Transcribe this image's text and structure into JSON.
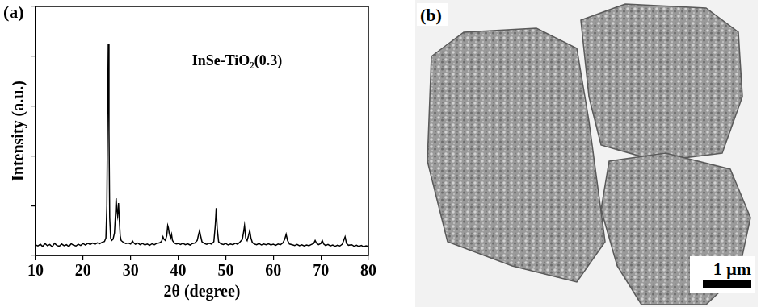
{
  "chart_data": {
    "type": "line",
    "panel_label": "(a)",
    "x_label": "2θ (degree)",
    "y_label": "Intensity (a.u.)",
    "annotations": [
      "InSe-TiO₂(0.3)"
    ],
    "x": [
      10,
      10.5,
      11,
      11.5,
      12,
      12.5,
      13,
      13.5,
      14,
      14.5,
      15,
      15.5,
      16,
      16.5,
      17,
      17.5,
      18,
      18.5,
      19,
      19.5,
      20,
      20.5,
      21,
      21.5,
      22,
      22.5,
      23,
      23.5,
      24,
      24.5,
      24.8,
      25.0,
      25.15,
      25.3,
      25.45,
      25.6,
      25.8,
      26.0,
      26.3,
      26.6,
      26.8,
      26.95,
      27.1,
      27.25,
      27.45,
      27.6,
      27.8,
      28.0,
      28.5,
      29,
      29.5,
      30,
      30.4,
      30.6,
      31,
      31.5,
      32,
      32.5,
      33,
      33.5,
      34,
      34.5,
      35,
      35.5,
      36,
      36.5,
      36.8,
      37,
      37.3,
      37.6,
      37.8,
      37.95,
      38.1,
      38.4,
      38.6,
      38.8,
      39.2,
      39.6,
      40,
      40.5,
      41,
      41.5,
      42,
      42.5,
      43,
      43.5,
      44,
      44.3,
      44.5,
      44.7,
      45,
      45.5,
      46,
      46.5,
      47,
      47.5,
      47.8,
      48,
      48.2,
      48.5,
      49,
      49.5,
      50,
      50.5,
      51,
      51.5,
      52,
      52.5,
      53,
      53.5,
      53.8,
      53.95,
      54.2,
      54.5,
      54.8,
      55.05,
      55.3,
      55.6,
      56,
      56.5,
      57,
      57.5,
      58,
      58.5,
      59,
      59.5,
      60,
      60.5,
      61,
      61.5,
      62,
      62.4,
      62.7,
      63,
      63.4,
      64,
      64.5,
      65,
      65.5,
      66,
      66.5,
      67,
      67.5,
      68,
      68.5,
      68.8,
      69.1,
      69.5,
      70,
      70.3,
      70.6,
      71,
      71.5,
      72,
      72.5,
      73,
      73.5,
      74,
      74.5,
      74.9,
      75.1,
      75.4,
      75.8,
      76.5,
      77,
      77.5,
      78,
      78.5,
      79,
      79.5,
      80
    ],
    "series": [
      {
        "name": "InSe-TiO₂(0.3)",
        "color": "#000000",
        "values": [
          4.2,
          3.8,
          4.5,
          3.6,
          4.8,
          3.9,
          4.4,
          3.5,
          4.9,
          4.0,
          3.7,
          4.6,
          3.9,
          4.3,
          3.6,
          4.7,
          4.1,
          3.8,
          4.5,
          4.0,
          4.8,
          4.2,
          4.9,
          4.4,
          5.0,
          4.5,
          5.1,
          4.7,
          5.3,
          5.6,
          7,
          20,
          55,
          85,
          50,
          15,
          7,
          6,
          6.5,
          9,
          16,
          23,
          18,
          16,
          21,
          15,
          8,
          6,
          5.2,
          4.8,
          5.0,
          4.6,
          5.8,
          5.2,
          4.5,
          5.0,
          4.3,
          4.8,
          4.2,
          4.6,
          4.1,
          4.7,
          4.3,
          4.9,
          5.0,
          5.6,
          7.5,
          6.5,
          6,
          8,
          12,
          11,
          9,
          7,
          8.5,
          6,
          5,
          4.6,
          4.8,
          4.4,
          4.9,
          4.3,
          4.7,
          4.2,
          4.8,
          5.0,
          6,
          8.5,
          10,
          8,
          5.5,
          4.8,
          4.5,
          4.9,
          4.6,
          5.5,
          12,
          19,
          11,
          5.5,
          4.7,
          4.4,
          4.8,
          4.2,
          4.6,
          4.3,
          4.9,
          4.5,
          5.4,
          6.5,
          10,
          12,
          7,
          6,
          8,
          10,
          7,
          5.2,
          4.6,
          4.3,
          4.8,
          4.2,
          4.6,
          4.3,
          4.7,
          4.2,
          4.5,
          4.1,
          4.6,
          4.3,
          5.0,
          6.5,
          8.5,
          6,
          4.6,
          4.3,
          4.0,
          4.4,
          3.9,
          4.3,
          3.8,
          4.2,
          3.9,
          4.4,
          4.8,
          6,
          4.9,
          4.3,
          4.8,
          6,
          4.6,
          4.0,
          4.4,
          3.8,
          4.2,
          3.7,
          4.1,
          3.8,
          4.5,
          6.5,
          7.5,
          4.8,
          4.1,
          4.3,
          3.7,
          4.1,
          3.6,
          4.0,
          3.5,
          3.9,
          3.6
        ]
      }
    ],
    "xlim": [
      10,
      80
    ],
    "xticks": [
      10,
      20,
      30,
      40,
      50,
      60,
      70,
      80
    ],
    "ylim": [
      0,
      100
    ],
    "yticks": [
      0,
      20,
      40,
      60,
      80,
      100
    ],
    "grid": false,
    "tick_labels": "x"
  },
  "image_panel": {
    "panel_label": "(b)",
    "scale_bar_label": "1 μm"
  }
}
